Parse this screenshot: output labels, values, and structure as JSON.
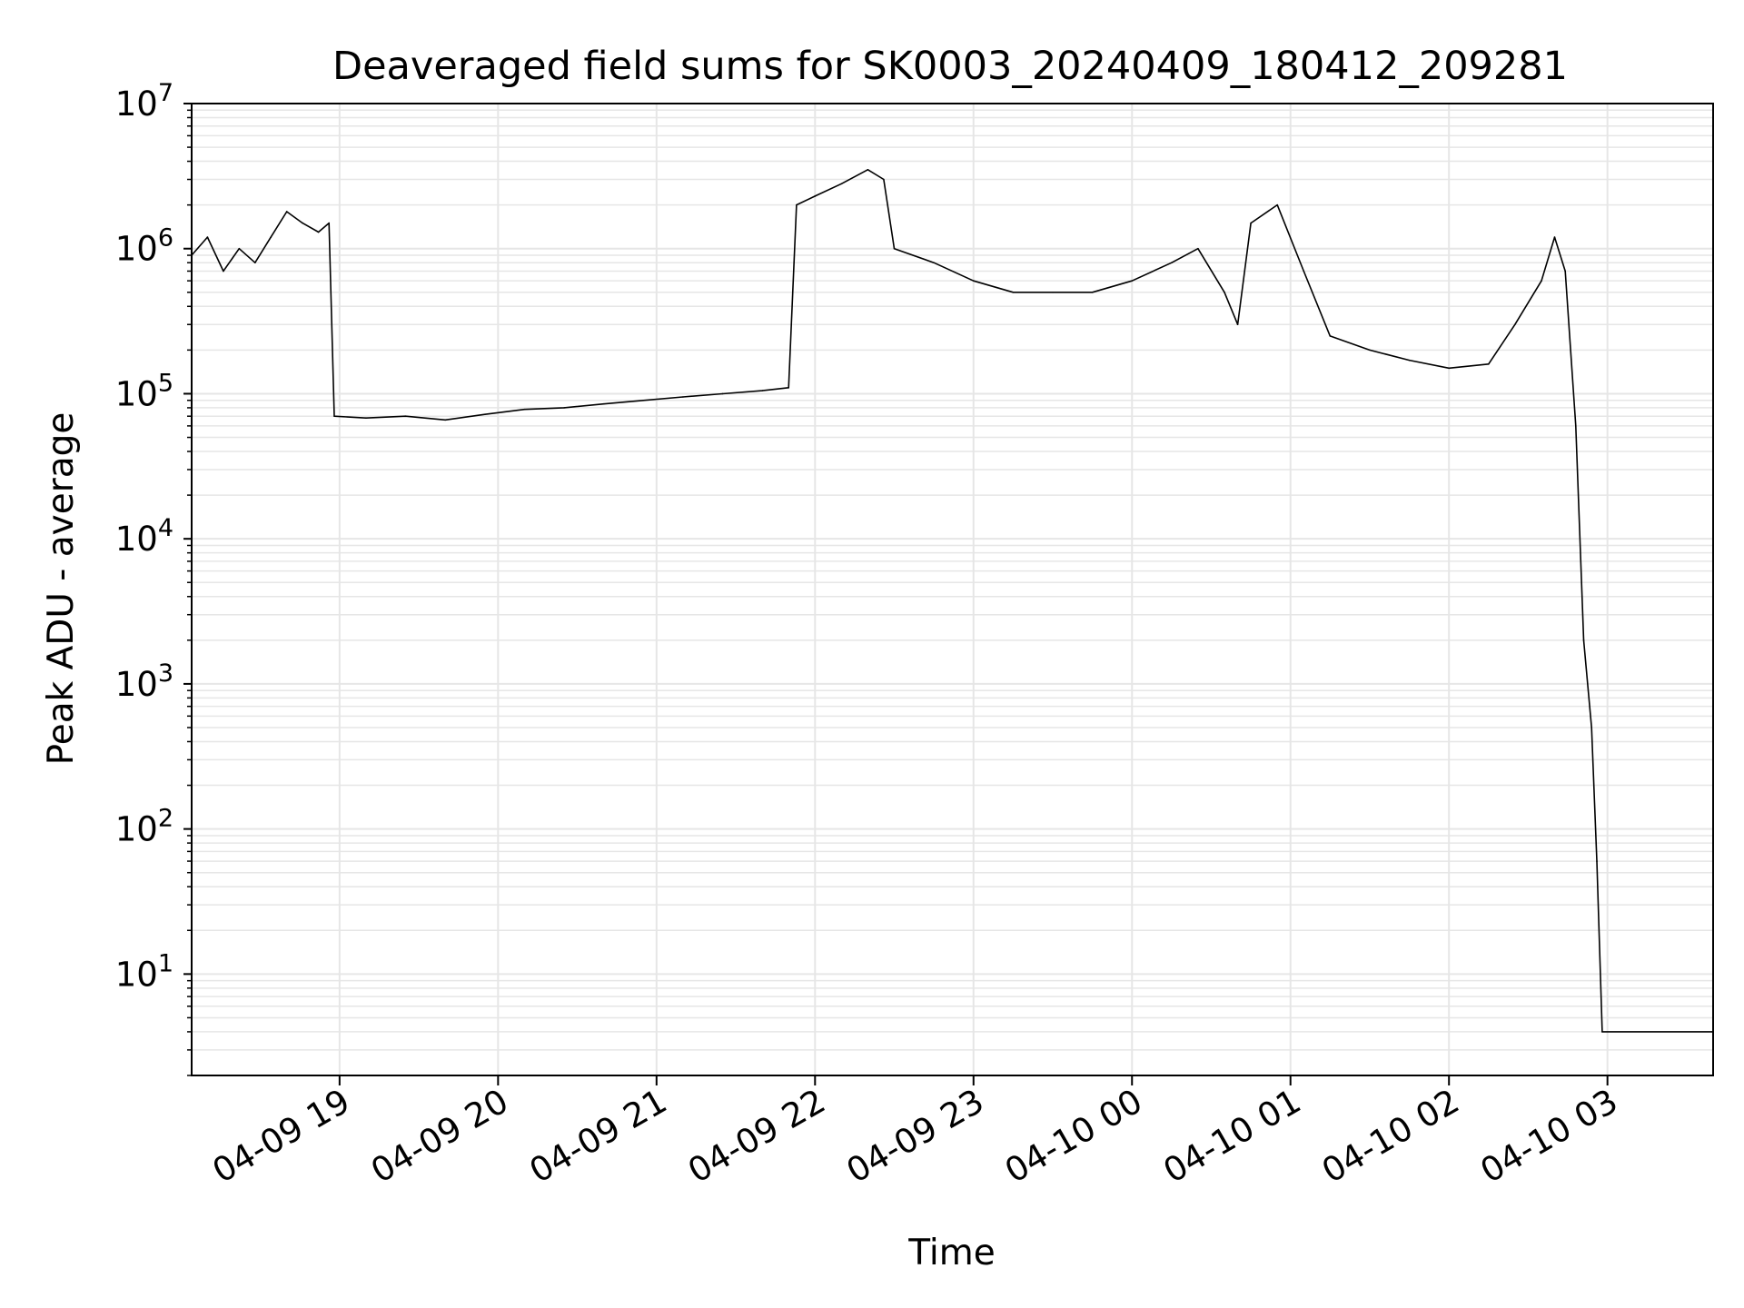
{
  "chart_data": {
    "type": "line",
    "title": "Deaveraged field sums for SK0003_20240409_180412_209281",
    "xlabel": "Time",
    "ylabel": "Peak ADU - average",
    "yscale": "log",
    "ylim": [
      2,
      10000000
    ],
    "xlim": [
      "04-09 18:04",
      "04-10 03:40"
    ],
    "grid": true,
    "line_color": "#000000",
    "grid_color": "#e6e6e6",
    "x_ticks": [
      {
        "label": "04-09 19",
        "t": "04-09 19:00"
      },
      {
        "label": "04-09 20",
        "t": "04-09 20:00"
      },
      {
        "label": "04-09 21",
        "t": "04-09 21:00"
      },
      {
        "label": "04-09 22",
        "t": "04-09 22:00"
      },
      {
        "label": "04-09 23",
        "t": "04-09 23:00"
      },
      {
        "label": "04-10 00",
        "t": "04-10 00:00"
      },
      {
        "label": "04-10 01",
        "t": "04-10 01:00"
      },
      {
        "label": "04-10 02",
        "t": "04-10 02:00"
      },
      {
        "label": "04-10 03",
        "t": "04-10 03:00"
      }
    ],
    "y_ticks": [
      {
        "base": "10",
        "exp": "1",
        "value": 10
      },
      {
        "base": "10",
        "exp": "2",
        "value": 100
      },
      {
        "base": "10",
        "exp": "3",
        "value": 1000
      },
      {
        "base": "10",
        "exp": "4",
        "value": 10000
      },
      {
        "base": "10",
        "exp": "5",
        "value": 100000
      },
      {
        "base": "10",
        "exp": "6",
        "value": 1000000
      },
      {
        "base": "10",
        "exp": "7",
        "value": 10000000
      }
    ],
    "series": [
      {
        "points": [
          [
            "04-09 18:04",
            900000
          ],
          [
            "04-09 18:10",
            1200000
          ],
          [
            "04-09 18:16",
            700000
          ],
          [
            "04-09 18:22",
            1000000
          ],
          [
            "04-09 18:28",
            800000
          ],
          [
            "04-09 18:34",
            1200000
          ],
          [
            "04-09 18:40",
            1800000
          ],
          [
            "04-09 18:46",
            1500000
          ],
          [
            "04-09 18:52",
            1300000
          ],
          [
            "04-09 18:56",
            1500000
          ],
          [
            "04-09 18:58",
            70000
          ],
          [
            "04-09 19:10",
            68000
          ],
          [
            "04-09 19:25",
            70000
          ],
          [
            "04-09 19:40",
            66000
          ],
          [
            "04-09 19:55",
            72000
          ],
          [
            "04-09 20:10",
            78000
          ],
          [
            "04-09 20:25",
            80000
          ],
          [
            "04-09 20:40",
            85000
          ],
          [
            "04-09 20:55",
            90000
          ],
          [
            "04-09 21:10",
            95000
          ],
          [
            "04-09 21:25",
            100000
          ],
          [
            "04-09 21:40",
            105000
          ],
          [
            "04-09 21:50",
            110000
          ],
          [
            "04-09 21:53",
            2000000
          ],
          [
            "04-09 22:00",
            2300000
          ],
          [
            "04-09 22:10",
            2800000
          ],
          [
            "04-09 22:20",
            3500000
          ],
          [
            "04-09 22:26",
            3000000
          ],
          [
            "04-09 22:30",
            1000000
          ],
          [
            "04-09 22:45",
            800000
          ],
          [
            "04-09 23:00",
            600000
          ],
          [
            "04-09 23:15",
            500000
          ],
          [
            "04-09 23:30",
            500000
          ],
          [
            "04-09 23:45",
            500000
          ],
          [
            "04-10 00:00",
            600000
          ],
          [
            "04-10 00:15",
            800000
          ],
          [
            "04-10 00:25",
            1000000
          ],
          [
            "04-10 00:35",
            500000
          ],
          [
            "04-10 00:40",
            300000
          ],
          [
            "04-10 00:45",
            1500000
          ],
          [
            "04-10 00:55",
            2000000
          ],
          [
            "04-10 01:05",
            700000
          ],
          [
            "04-10 01:15",
            250000
          ],
          [
            "04-10 01:30",
            200000
          ],
          [
            "04-10 01:45",
            170000
          ],
          [
            "04-10 02:00",
            150000
          ],
          [
            "04-10 02:15",
            160000
          ],
          [
            "04-10 02:25",
            300000
          ],
          [
            "04-10 02:35",
            600000
          ],
          [
            "04-10 02:40",
            1200000
          ],
          [
            "04-10 02:44",
            700000
          ],
          [
            "04-10 02:48",
            60000
          ],
          [
            "04-10 02:51",
            2000
          ],
          [
            "04-10 02:54",
            500
          ],
          [
            "04-10 02:56",
            60
          ],
          [
            "04-10 02:58",
            4
          ],
          [
            "04-10 03:40",
            4
          ]
        ]
      }
    ]
  }
}
